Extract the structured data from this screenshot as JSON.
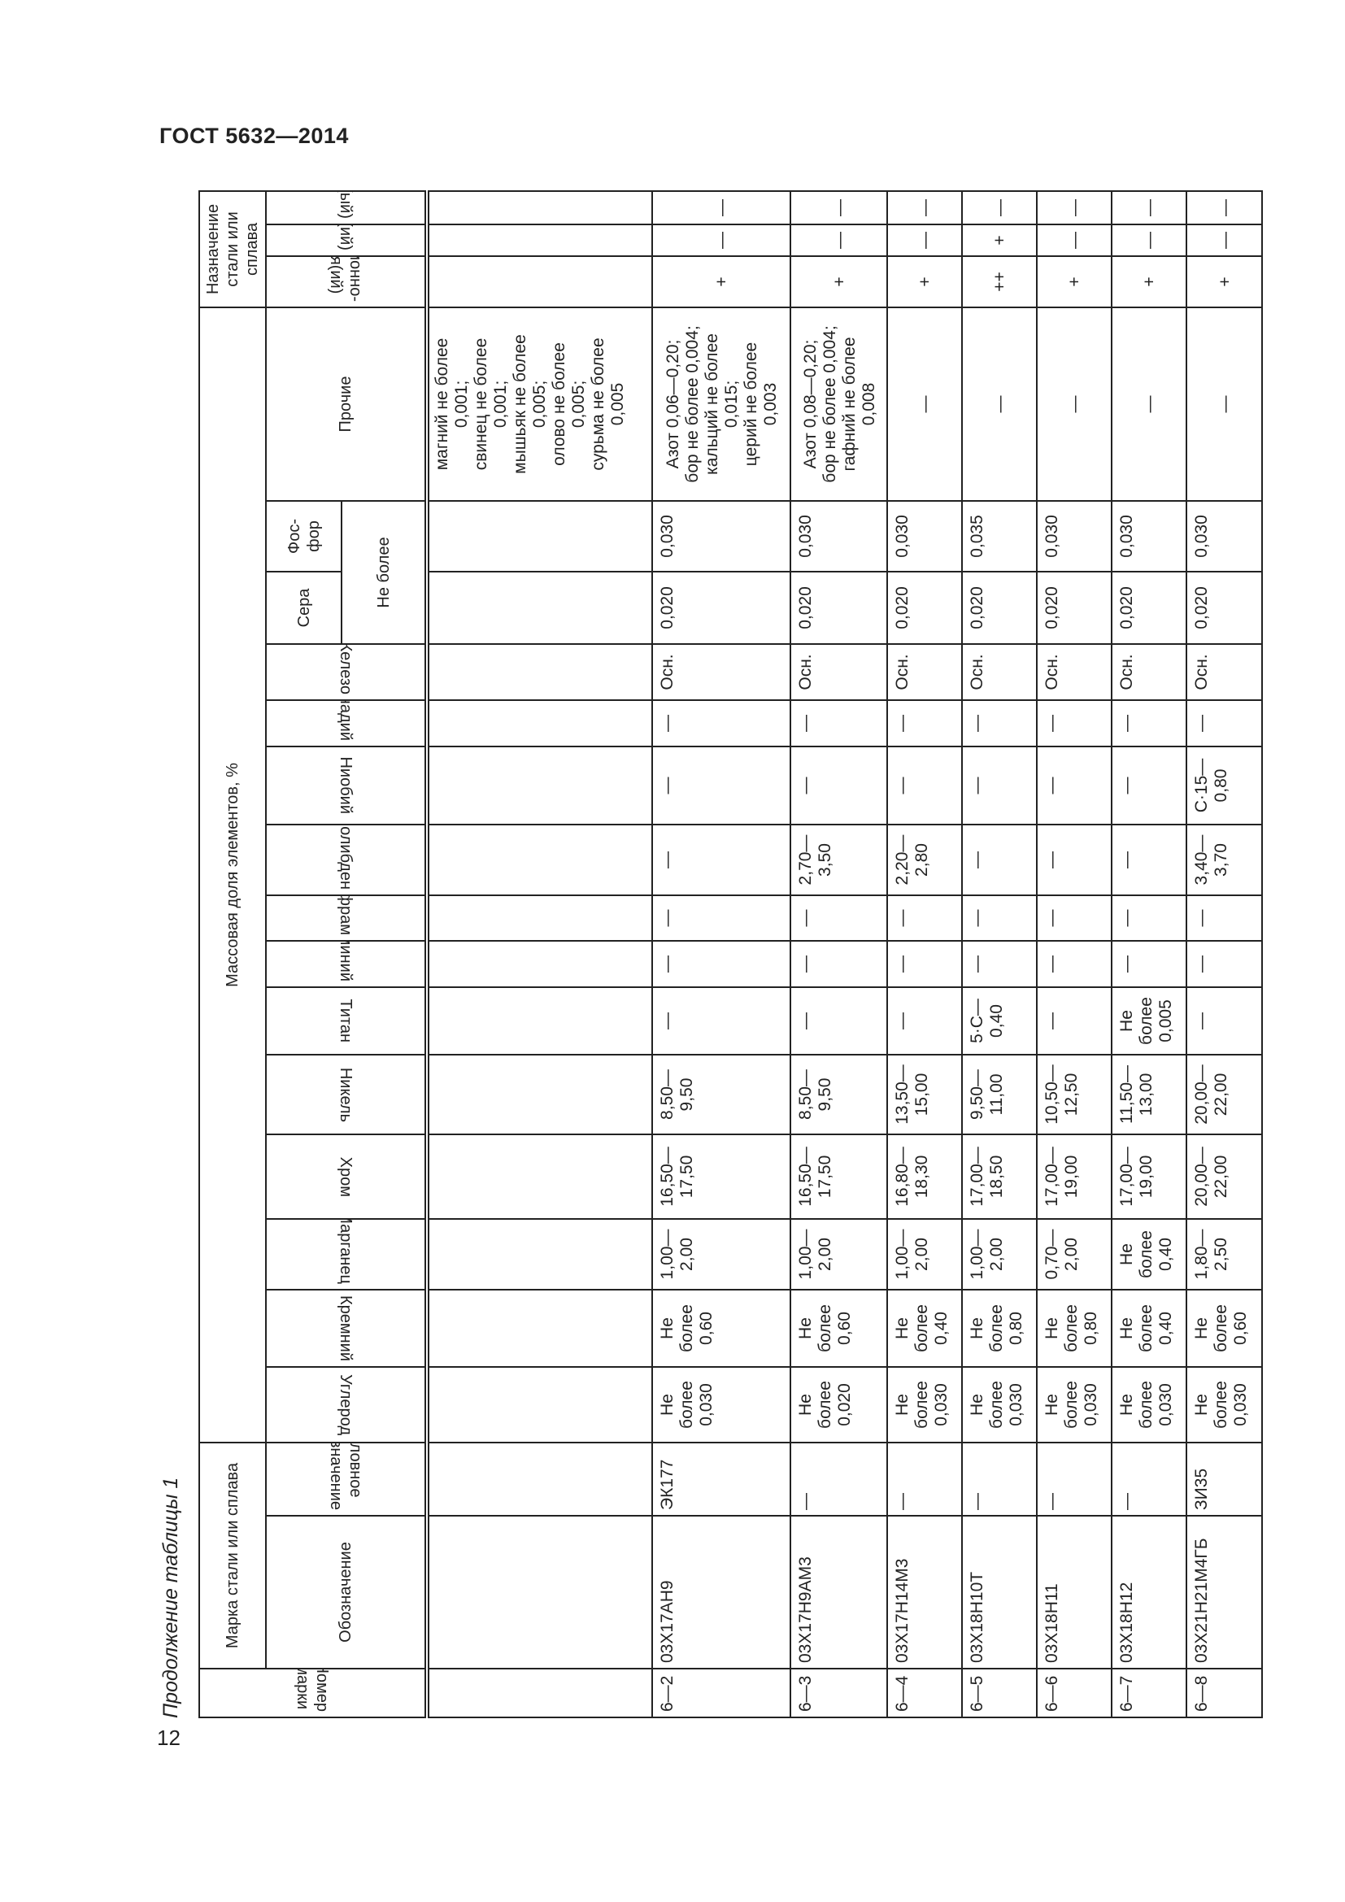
{
  "document": {
    "title": "ГОСТ 5632—2014",
    "page_number": "12",
    "caption": "Продолжение таблицы 1"
  },
  "table": {
    "headers": {
      "number": "Номер марки",
      "grade": "Марка стали или сплава",
      "designation": "Обозначение",
      "conventional": "Условное обозначение",
      "mass_fraction": "Массовая доля элементов, %",
      "carbon": "Углерод",
      "silicon": "Кремний",
      "manganese": "Марганец",
      "chromium": "Хром",
      "nickel": "Никель",
      "titanium": "Титан",
      "aluminium": "Алюминий",
      "tungsten": "Вольфрам",
      "molybdenum": "Молибден",
      "niobium": "Ниобий",
      "vanadium": "Ванадий",
      "iron": "Железо",
      "sulfur": "Сера",
      "phosphorus": "Фос-\nфор",
      "not_more": "Не более",
      "other": "Прочие",
      "purpose": "Назначение стали или сплава",
      "corrosion": "Коррозионно-стойкая(ий)",
      "heat_resistant": "Жаростойкая(ий)",
      "heat_strength": "Жаропрочная(ый)"
    },
    "continuation_other": "магний не более\n0,001;\nсвинец не более\n0,001;\nмышьяк не более\n0,005;\nолово не более\n0,005;\nсурьма не более\n0,005",
    "rows": [
      {
        "number": "6—2",
        "designation": "03Х17АН9",
        "conventional": "ЭК177",
        "carbon": "Не\nболее\n0,030",
        "silicon": "Не\nболее\n0,60",
        "manganese": "1,00—\n2,00",
        "chromium": "16,50—\n17,50",
        "nickel": "8,50—\n9,50",
        "titanium": "—",
        "aluminium": "—",
        "tungsten": "—",
        "molybdenum": "—",
        "niobium": "—",
        "vanadium": "—",
        "iron": "Осн.",
        "sulfur": "0,020",
        "phosphorus": "0,030",
        "other": "Азот 0,06—0,20;\nбор не более 0,004;\nкальций не более\n0,015;\nцерий не более\n0,003",
        "corrosion": "+",
        "heat_resistant": "—",
        "heat_strength": "—"
      },
      {
        "number": "6—3",
        "designation": "03Х17Н9АМ3",
        "conventional": "—",
        "carbon": "Не\nболее\n0,020",
        "silicon": "Не\nболее\n0,60",
        "manganese": "1,00—\n2,00",
        "chromium": "16,50—\n17,50",
        "nickel": "8,50—\n9,50",
        "titanium": "—",
        "aluminium": "—",
        "tungsten": "—",
        "molybdenum": "2,70—\n3,50",
        "niobium": "—",
        "vanadium": "—",
        "iron": "Осн.",
        "sulfur": "0,020",
        "phosphorus": "0,030",
        "other": "Азот 0,08—0,20;\nбор не более 0,004;\nгафний не более\n0,008",
        "corrosion": "+",
        "heat_resistant": "—",
        "heat_strength": "—"
      },
      {
        "number": "6—4",
        "designation": "03Х17Н14М3",
        "conventional": "—",
        "carbon": "Не\nболее\n0,030",
        "silicon": "Не\nболее\n0,40",
        "manganese": "1,00—\n2,00",
        "chromium": "16,80—\n18,30",
        "nickel": "13,50—\n15,00",
        "titanium": "—",
        "aluminium": "—",
        "tungsten": "—",
        "molybdenum": "2,20—\n2,80",
        "niobium": "—",
        "vanadium": "—",
        "iron": "Осн.",
        "sulfur": "0,020",
        "phosphorus": "0,030",
        "other": "—",
        "corrosion": "+",
        "heat_resistant": "—",
        "heat_strength": "—"
      },
      {
        "number": "6—5",
        "designation": "03Х18Н10Т",
        "conventional": "—",
        "carbon": "Не\nболее\n0,030",
        "silicon": "Не\nболее\n0,80",
        "manganese": "1,00—\n2,00",
        "chromium": "17,00—\n18,50",
        "nickel": "9,50—\n11,00",
        "titanium": "5·С—\n0,40",
        "aluminium": "—",
        "tungsten": "—",
        "molybdenum": "—",
        "niobium": "—",
        "vanadium": "—",
        "iron": "Осн.",
        "sulfur": "0,020",
        "phosphorus": "0,035",
        "other": "—",
        "corrosion": "++",
        "heat_resistant": "+",
        "heat_strength": "—"
      },
      {
        "number": "6—6",
        "designation": "03Х18Н11",
        "conventional": "—",
        "carbon": "Не\nболее\n0,030",
        "silicon": "Не\nболее\n0,80",
        "manganese": "0,70—\n2,00",
        "chromium": "17,00—\n19,00",
        "nickel": "10,50—\n12,50",
        "titanium": "—",
        "aluminium": "—",
        "tungsten": "—",
        "molybdenum": "—",
        "niobium": "—",
        "vanadium": "—",
        "iron": "Осн.",
        "sulfur": "0,020",
        "phosphorus": "0,030",
        "other": "—",
        "corrosion": "+",
        "heat_resistant": "—",
        "heat_strength": "—"
      },
      {
        "number": "6—7",
        "designation": "03Х18Н12",
        "conventional": "—",
        "carbon": "Не\nболее\n0,030",
        "silicon": "Не\nболее\n0,40",
        "manganese": "Не\nболее\n0,40",
        "chromium": "17,00—\n19,00",
        "nickel": "11,50—\n13,00",
        "titanium": "Не\nболее\n0,005",
        "aluminium": "—",
        "tungsten": "—",
        "molybdenum": "—",
        "niobium": "—",
        "vanadium": "—",
        "iron": "Осн.",
        "sulfur": "0,020",
        "phosphorus": "0,030",
        "other": "—",
        "corrosion": "+",
        "heat_resistant": "—",
        "heat_strength": "—"
      },
      {
        "number": "6—8",
        "designation": "03Х21Н21М4ГБ",
        "conventional": "ЗИ35",
        "carbon": "Не\nболее\n0,030",
        "silicon": "Не\nболее\n0,60",
        "manganese": "1,80—\n2,50",
        "chromium": "20,00—\n22,00",
        "nickel": "20,00—\n22,00",
        "titanium": "—",
        "aluminium": "—",
        "tungsten": "—",
        "molybdenum": "3,40—\n3,70",
        "niobium": "С·15—\n0,80",
        "vanadium": "—",
        "iron": "Осн.",
        "sulfur": "0,020",
        "phosphorus": "0,030",
        "other": "—",
        "corrosion": "+",
        "heat_resistant": "—",
        "heat_strength": "—"
      }
    ]
  }
}
